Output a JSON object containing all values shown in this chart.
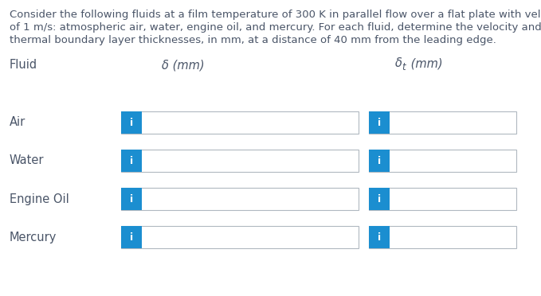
{
  "title_lines": [
    "Consider the following fluids at a film temperature of 300 K in parallel flow over a flat plate with velocity",
    "of 1 m/s: atmospheric air, water, engine oil, and mercury. For each fluid, determine the velocity and",
    "thermal boundary layer thicknesses, in mm, at a distance of 40 mm from the leading edge."
  ],
  "header_fluid": "Fluid",
  "header_delta": "δ (mm)",
  "header_delta_t": "δ",
  "header_delta_t_sub": "t",
  "header_delta_t_rest": " (mm)",
  "fluids": [
    "Air",
    "Water",
    "Engine Oil",
    "Mercury"
  ],
  "button_color": "#1b8ed0",
  "button_text": "i",
  "box_border_color": "#b0b8c0",
  "background_color": "#ffffff",
  "text_color": "#4a5568",
  "title_color": "#4a5568",
  "title_fontsize": 9.5,
  "label_fontsize": 10.5,
  "header_fontsize": 10.5,
  "fig_width": 6.79,
  "fig_height": 3.72,
  "dpi": 100
}
